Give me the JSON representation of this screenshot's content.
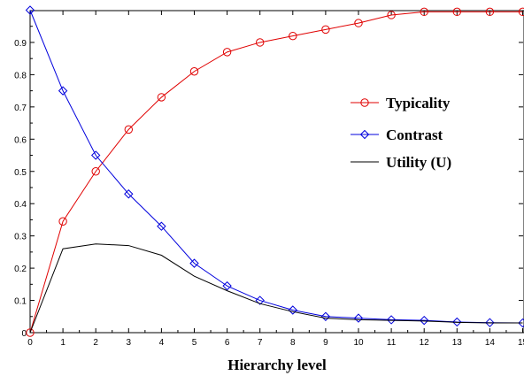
{
  "chart_data": {
    "type": "line",
    "title": "",
    "xlabel": "Hierarchy level",
    "ylabel": "",
    "xlim": [
      0,
      15
    ],
    "ylim": [
      0,
      1
    ],
    "x": [
      0,
      1,
      2,
      3,
      4,
      5,
      6,
      7,
      8,
      9,
      10,
      11,
      12,
      13,
      14,
      15
    ],
    "x_ticks": [
      "0",
      "1",
      "2",
      "3",
      "4",
      "5",
      "6",
      "7",
      "8",
      "9",
      "10",
      "11",
      "12",
      "13",
      "14",
      "15"
    ],
    "y_ticks": [
      "0",
      "0.1",
      "0.2",
      "0.3",
      "0.4",
      "0.5",
      "0.6",
      "0.7",
      "0.8",
      "0.9"
    ],
    "y_tick_values": [
      0,
      0.1,
      0.2,
      0.3,
      0.4,
      0.5,
      0.6,
      0.7,
      0.8,
      0.9
    ],
    "grid": false,
    "legend_position": "right",
    "series": [
      {
        "name": "Typicality",
        "color": "#e00000",
        "marker": "circle",
        "values": [
          0.0,
          0.345,
          0.5,
          0.63,
          0.73,
          0.81,
          0.87,
          0.9,
          0.92,
          0.94,
          0.96,
          0.985,
          0.995,
          0.995,
          0.995,
          0.995
        ]
      },
      {
        "name": "Contrast",
        "color": "#0000dd",
        "marker": "diamond",
        "values": [
          1.0,
          0.75,
          0.55,
          0.43,
          0.33,
          0.215,
          0.145,
          0.1,
          0.07,
          0.05,
          0.045,
          0.04,
          0.038,
          0.033,
          0.031,
          0.03
        ]
      },
      {
        "name": "Utility (U)",
        "color": "#000000",
        "marker": "none",
        "values": [
          0.0,
          0.26,
          0.275,
          0.27,
          0.24,
          0.175,
          0.13,
          0.09,
          0.065,
          0.045,
          0.04,
          0.038,
          0.036,
          0.032,
          0.03,
          0.03
        ]
      }
    ]
  }
}
